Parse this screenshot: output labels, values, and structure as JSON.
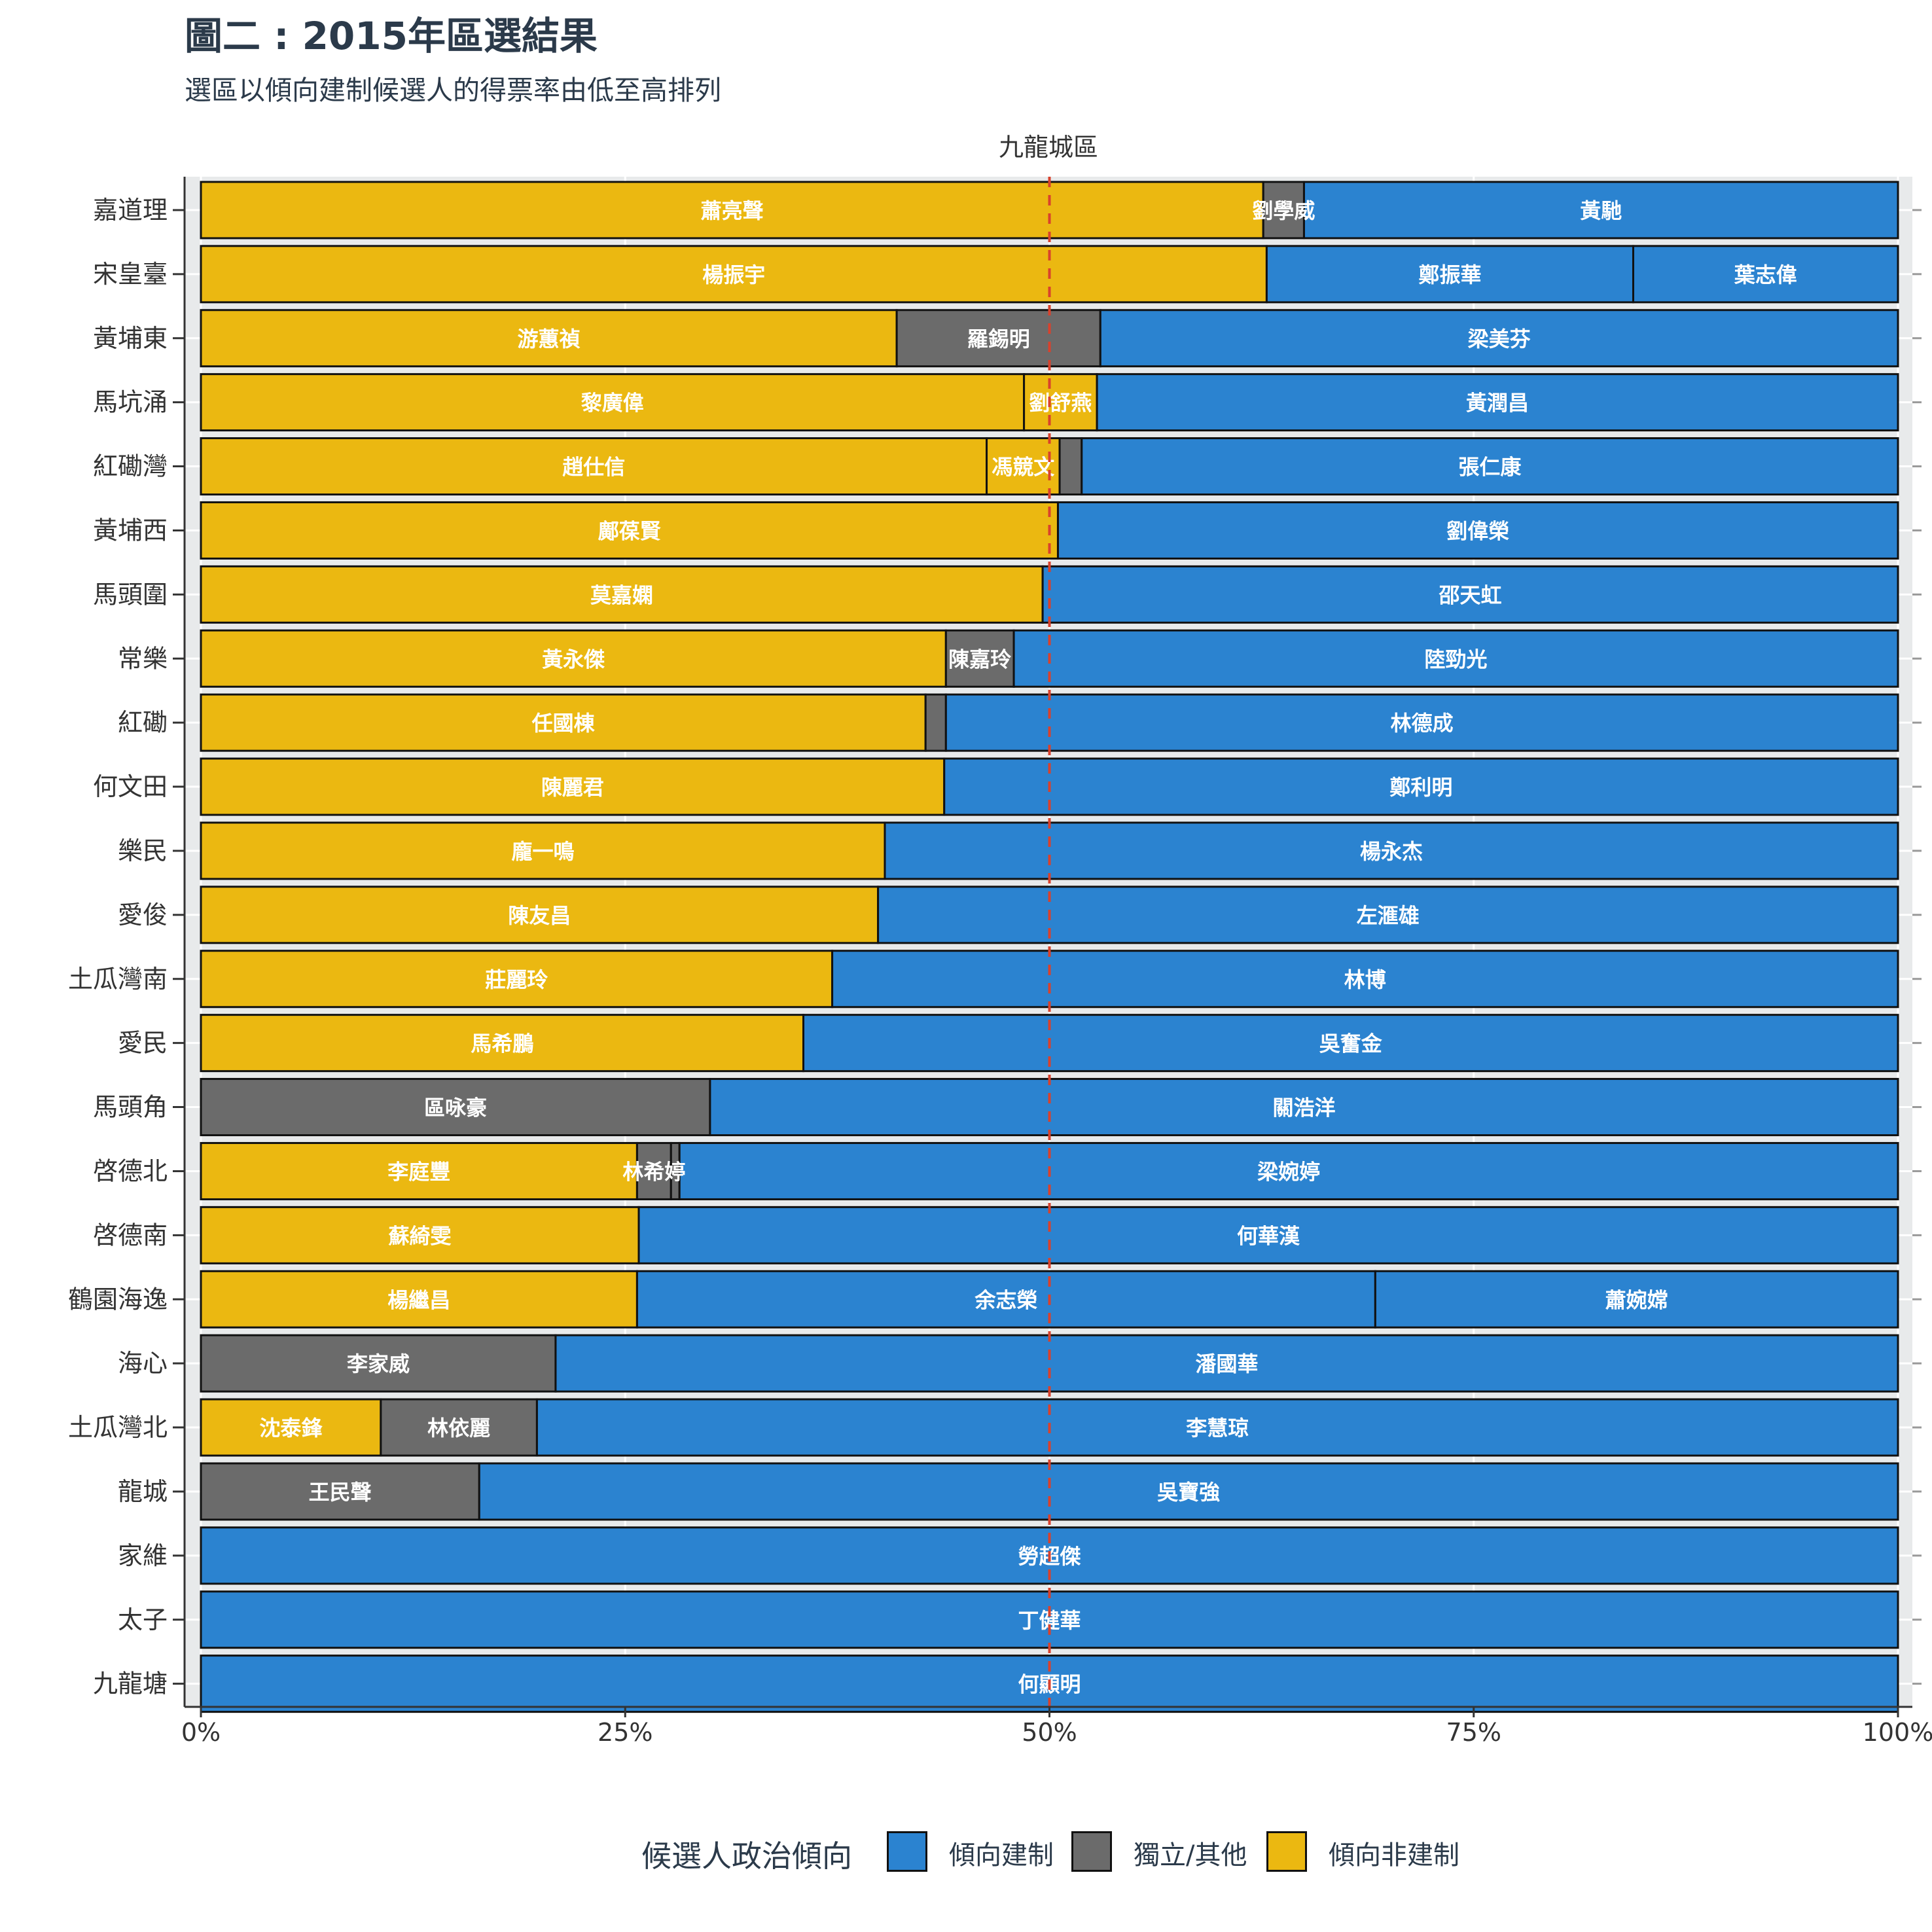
{
  "title": "圖二 : 2015年區選結果",
  "subtitle": "選區以傾向建制候選人的得票率由低至高排列",
  "colors": {
    "pro": "#2b83d0",
    "independent": "#6b6b6b",
    "nonpro": "#ebb811",
    "midline": "#d9412c"
  },
  "legend": {
    "title": "候選人政治傾向",
    "items": [
      {
        "label": "傾向建制",
        "color": "#2b83d0"
      },
      {
        "label": "獨立/其他",
        "color": "#6b6b6b"
      },
      {
        "label": "傾向非建制",
        "color": "#ebb811"
      }
    ]
  },
  "chart_data": {
    "type": "bar",
    "orientation": "horizontal-stacked-100",
    "facet_label": "九龍城區",
    "x_ticks": [
      "0%",
      "25%",
      "50%",
      "75%",
      "100%"
    ],
    "xlim": [
      0,
      100
    ],
    "reference_line": 50,
    "rows": [
      {
        "district": "嘉道理",
        "segments": [
          {
            "name": "蕭亮聲",
            "group": "nonpro",
            "value": 62.6
          },
          {
            "name": "劉學威",
            "group": "independent",
            "value": 2.4
          },
          {
            "name": "黃馳",
            "group": "pro",
            "value": 35.0
          }
        ]
      },
      {
        "district": "宋皇臺",
        "segments": [
          {
            "name": "楊振宇",
            "group": "nonpro",
            "value": 62.8
          },
          {
            "name": "鄭振華",
            "group": "pro",
            "value": 21.6
          },
          {
            "name": "葉志偉",
            "group": "pro",
            "value": 15.6
          }
        ]
      },
      {
        "district": "黃埔東",
        "segments": [
          {
            "name": "游蕙禎",
            "group": "nonpro",
            "value": 41.0
          },
          {
            "name": "羅錫明",
            "group": "independent",
            "value": 12.0
          },
          {
            "name": "梁美芬",
            "group": "pro",
            "value": 47.0
          }
        ]
      },
      {
        "district": "馬坑涌",
        "segments": [
          {
            "name": "黎廣偉",
            "group": "nonpro",
            "value": 48.5
          },
          {
            "name": "劉舒燕",
            "group": "nonpro",
            "value": 4.3
          },
          {
            "name": "黃潤昌",
            "group": "pro",
            "value": 47.2
          }
        ]
      },
      {
        "district": "紅磡灣",
        "segments": [
          {
            "name": "趙仕信",
            "group": "nonpro",
            "value": 46.3
          },
          {
            "name": "馮競文",
            "group": "nonpro",
            "value": 4.3
          },
          {
            "name": "",
            "group": "independent",
            "value": 1.3
          },
          {
            "name": "張仁康",
            "group": "pro",
            "value": 48.1
          }
        ]
      },
      {
        "district": "黃埔西",
        "segments": [
          {
            "name": "鄺葆賢",
            "group": "nonpro",
            "value": 50.5
          },
          {
            "name": "劉偉榮",
            "group": "pro",
            "value": 49.5
          }
        ]
      },
      {
        "district": "馬頭圍",
        "segments": [
          {
            "name": "莫嘉嫻",
            "group": "nonpro",
            "value": 49.6
          },
          {
            "name": "邵天虹",
            "group": "pro",
            "value": 50.4
          }
        ]
      },
      {
        "district": "常樂",
        "segments": [
          {
            "name": "黃永傑",
            "group": "nonpro",
            "value": 43.9
          },
          {
            "name": "陳嘉玲",
            "group": "independent",
            "value": 4.0
          },
          {
            "name": "陸勁光",
            "group": "pro",
            "value": 52.1
          }
        ]
      },
      {
        "district": "紅磡",
        "segments": [
          {
            "name": "任國棟",
            "group": "nonpro",
            "value": 42.7
          },
          {
            "name": "",
            "group": "independent",
            "value": 1.2
          },
          {
            "name": "林德成",
            "group": "pro",
            "value": 56.1
          }
        ]
      },
      {
        "district": "何文田",
        "segments": [
          {
            "name": "陳麗君",
            "group": "nonpro",
            "value": 43.8
          },
          {
            "name": "鄭利明",
            "group": "pro",
            "value": 56.2
          }
        ]
      },
      {
        "district": "樂民",
        "segments": [
          {
            "name": "龐一鳴",
            "group": "nonpro",
            "value": 40.3
          },
          {
            "name": "楊永杰",
            "group": "pro",
            "value": 59.7
          }
        ]
      },
      {
        "district": "愛俊",
        "segments": [
          {
            "name": "陳友昌",
            "group": "nonpro",
            "value": 39.9
          },
          {
            "name": "左滙雄",
            "group": "pro",
            "value": 60.1
          }
        ]
      },
      {
        "district": "土瓜灣南",
        "segments": [
          {
            "name": "莊麗玲",
            "group": "nonpro",
            "value": 37.2
          },
          {
            "name": "林博",
            "group": "pro",
            "value": 62.8
          }
        ]
      },
      {
        "district": "愛民",
        "segments": [
          {
            "name": "馬希鵬",
            "group": "nonpro",
            "value": 35.5
          },
          {
            "name": "吳奮金",
            "group": "pro",
            "value": 64.5
          }
        ]
      },
      {
        "district": "馬頭角",
        "segments": [
          {
            "name": "區咏豪",
            "group": "independent",
            "value": 30.0
          },
          {
            "name": "關浩洋",
            "group": "pro",
            "value": 70.0
          }
        ]
      },
      {
        "district": "啓德北",
        "segments": [
          {
            "name": "李庭豐",
            "group": "nonpro",
            "value": 25.7
          },
          {
            "name": "林希婷",
            "group": "independent",
            "value": 2.0
          },
          {
            "name": "",
            "group": "independent",
            "value": 0.5
          },
          {
            "name": "梁婉婷",
            "group": "pro",
            "value": 71.8
          }
        ]
      },
      {
        "district": "啓德南",
        "segments": [
          {
            "name": "蘇綺雯",
            "group": "nonpro",
            "value": 25.8
          },
          {
            "name": "何華漢",
            "group": "pro",
            "value": 74.2
          }
        ]
      },
      {
        "district": "鶴園海逸",
        "segments": [
          {
            "name": "楊繼昌",
            "group": "nonpro",
            "value": 25.7
          },
          {
            "name": "余志榮",
            "group": "pro",
            "value": 43.5
          },
          {
            "name": "蕭婉嫦",
            "group": "pro",
            "value": 30.8
          }
        ]
      },
      {
        "district": "海心",
        "segments": [
          {
            "name": "李家威",
            "group": "independent",
            "value": 20.9
          },
          {
            "name": "潘國華",
            "group": "pro",
            "value": 79.1
          }
        ]
      },
      {
        "district": "土瓜灣北",
        "segments": [
          {
            "name": "沈泰鋒",
            "group": "nonpro",
            "value": 10.6
          },
          {
            "name": "林依麗",
            "group": "independent",
            "value": 9.2
          },
          {
            "name": "李慧琼",
            "group": "pro",
            "value": 80.2
          }
        ]
      },
      {
        "district": "龍城",
        "segments": [
          {
            "name": "王民聲",
            "group": "independent",
            "value": 16.4
          },
          {
            "name": "吳寶強",
            "group": "pro",
            "value": 83.6
          }
        ]
      },
      {
        "district": "家維",
        "segments": [
          {
            "name": "勞超傑",
            "group": "pro",
            "value": 100
          }
        ]
      },
      {
        "district": "太子",
        "segments": [
          {
            "name": "丁健華",
            "group": "pro",
            "value": 100
          }
        ]
      },
      {
        "district": "九龍塘",
        "segments": [
          {
            "name": "何顯明",
            "group": "pro",
            "value": 100
          }
        ]
      }
    ]
  }
}
